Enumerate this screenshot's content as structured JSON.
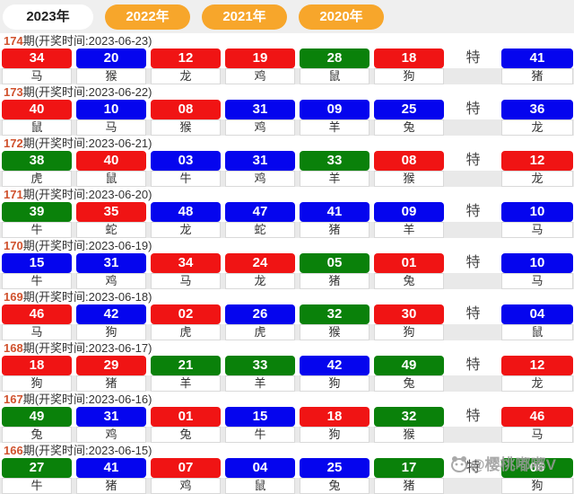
{
  "ui": {
    "special_label": "特",
    "watermark_text": "@樱桃嘟嘟V"
  },
  "colors": {
    "red": "#f01414",
    "blue": "#0505ee",
    "green": "#0a810a",
    "tab_orange": "#f7a62b",
    "tab_active_bg": "#ffffff",
    "period_number": "#d0512d",
    "zodiac_band": "#e9e9e9"
  },
  "tabs": [
    {
      "label": "2023年",
      "active": true
    },
    {
      "label": "2022年",
      "active": false
    },
    {
      "label": "2021年",
      "active": false
    },
    {
      "label": "2020年",
      "active": false
    }
  ],
  "draws": [
    {
      "period": "174",
      "header_rest": "期(开奖时间:2023-06-23)",
      "numbers": [
        {
          "value": "34",
          "zodiac": "马",
          "color": "red"
        },
        {
          "value": "20",
          "zodiac": "猴",
          "color": "blue"
        },
        {
          "value": "12",
          "zodiac": "龙",
          "color": "red"
        },
        {
          "value": "19",
          "zodiac": "鸡",
          "color": "red"
        },
        {
          "value": "28",
          "zodiac": "鼠",
          "color": "green"
        },
        {
          "value": "18",
          "zodiac": "狗",
          "color": "red"
        }
      ],
      "special": {
        "value": "41",
        "zodiac": "猪",
        "color": "blue"
      }
    },
    {
      "period": "173",
      "header_rest": "期(开奖时间:2023-06-22)",
      "numbers": [
        {
          "value": "40",
          "zodiac": "鼠",
          "color": "red"
        },
        {
          "value": "10",
          "zodiac": "马",
          "color": "blue"
        },
        {
          "value": "08",
          "zodiac": "猴",
          "color": "red"
        },
        {
          "value": "31",
          "zodiac": "鸡",
          "color": "blue"
        },
        {
          "value": "09",
          "zodiac": "羊",
          "color": "blue"
        },
        {
          "value": "25",
          "zodiac": "兔",
          "color": "blue"
        }
      ],
      "special": {
        "value": "36",
        "zodiac": "龙",
        "color": "blue"
      }
    },
    {
      "period": "172",
      "header_rest": "期(开奖时间:2023-06-21)",
      "numbers": [
        {
          "value": "38",
          "zodiac": "虎",
          "color": "green"
        },
        {
          "value": "40",
          "zodiac": "鼠",
          "color": "red"
        },
        {
          "value": "03",
          "zodiac": "牛",
          "color": "blue"
        },
        {
          "value": "31",
          "zodiac": "鸡",
          "color": "blue"
        },
        {
          "value": "33",
          "zodiac": "羊",
          "color": "green"
        },
        {
          "value": "08",
          "zodiac": "猴",
          "color": "red"
        }
      ],
      "special": {
        "value": "12",
        "zodiac": "龙",
        "color": "red"
      }
    },
    {
      "period": "171",
      "header_rest": "期(开奖时间:2023-06-20)",
      "numbers": [
        {
          "value": "39",
          "zodiac": "牛",
          "color": "green"
        },
        {
          "value": "35",
          "zodiac": "蛇",
          "color": "red"
        },
        {
          "value": "48",
          "zodiac": "龙",
          "color": "blue"
        },
        {
          "value": "47",
          "zodiac": "蛇",
          "color": "blue"
        },
        {
          "value": "41",
          "zodiac": "猪",
          "color": "blue"
        },
        {
          "value": "09",
          "zodiac": "羊",
          "color": "blue"
        }
      ],
      "special": {
        "value": "10",
        "zodiac": "马",
        "color": "blue"
      }
    },
    {
      "period": "170",
      "header_rest": "期(开奖时间:2023-06-19)",
      "numbers": [
        {
          "value": "15",
          "zodiac": "牛",
          "color": "blue"
        },
        {
          "value": "31",
          "zodiac": "鸡",
          "color": "blue"
        },
        {
          "value": "34",
          "zodiac": "马",
          "color": "red"
        },
        {
          "value": "24",
          "zodiac": "龙",
          "color": "red"
        },
        {
          "value": "05",
          "zodiac": "猪",
          "color": "green"
        },
        {
          "value": "01",
          "zodiac": "兔",
          "color": "red"
        }
      ],
      "special": {
        "value": "10",
        "zodiac": "马",
        "color": "blue"
      }
    },
    {
      "period": "169",
      "header_rest": "期(开奖时间:2023-06-18)",
      "numbers": [
        {
          "value": "46",
          "zodiac": "马",
          "color": "red"
        },
        {
          "value": "42",
          "zodiac": "狗",
          "color": "blue"
        },
        {
          "value": "02",
          "zodiac": "虎",
          "color": "red"
        },
        {
          "value": "26",
          "zodiac": "虎",
          "color": "blue"
        },
        {
          "value": "32",
          "zodiac": "猴",
          "color": "green"
        },
        {
          "value": "30",
          "zodiac": "狗",
          "color": "red"
        }
      ],
      "special": {
        "value": "04",
        "zodiac": "鼠",
        "color": "blue"
      }
    },
    {
      "period": "168",
      "header_rest": "期(开奖时间:2023-06-17)",
      "numbers": [
        {
          "value": "18",
          "zodiac": "狗",
          "color": "red"
        },
        {
          "value": "29",
          "zodiac": "猪",
          "color": "red"
        },
        {
          "value": "21",
          "zodiac": "羊",
          "color": "green"
        },
        {
          "value": "33",
          "zodiac": "羊",
          "color": "green"
        },
        {
          "value": "42",
          "zodiac": "狗",
          "color": "blue"
        },
        {
          "value": "49",
          "zodiac": "兔",
          "color": "green"
        }
      ],
      "special": {
        "value": "12",
        "zodiac": "龙",
        "color": "red"
      }
    },
    {
      "period": "167",
      "header_rest": "期(开奖时间:2023-06-16)",
      "numbers": [
        {
          "value": "49",
          "zodiac": "兔",
          "color": "green"
        },
        {
          "value": "31",
          "zodiac": "鸡",
          "color": "blue"
        },
        {
          "value": "01",
          "zodiac": "兔",
          "color": "red"
        },
        {
          "value": "15",
          "zodiac": "牛",
          "color": "blue"
        },
        {
          "value": "18",
          "zodiac": "狗",
          "color": "red"
        },
        {
          "value": "32",
          "zodiac": "猴",
          "color": "green"
        }
      ],
      "special": {
        "value": "46",
        "zodiac": "马",
        "color": "red"
      }
    },
    {
      "period": "166",
      "header_rest": "期(开奖时间:2023-06-15)",
      "numbers": [
        {
          "value": "27",
          "zodiac": "牛",
          "color": "green"
        },
        {
          "value": "41",
          "zodiac": "猪",
          "color": "blue"
        },
        {
          "value": "07",
          "zodiac": "鸡",
          "color": "red"
        },
        {
          "value": "04",
          "zodiac": "鼠",
          "color": "blue"
        },
        {
          "value": "25",
          "zodiac": "兔",
          "color": "blue"
        },
        {
          "value": "17",
          "zodiac": "猪",
          "color": "green"
        }
      ],
      "special": {
        "value": "06",
        "zodiac": "狗",
        "color": "green"
      }
    }
  ]
}
